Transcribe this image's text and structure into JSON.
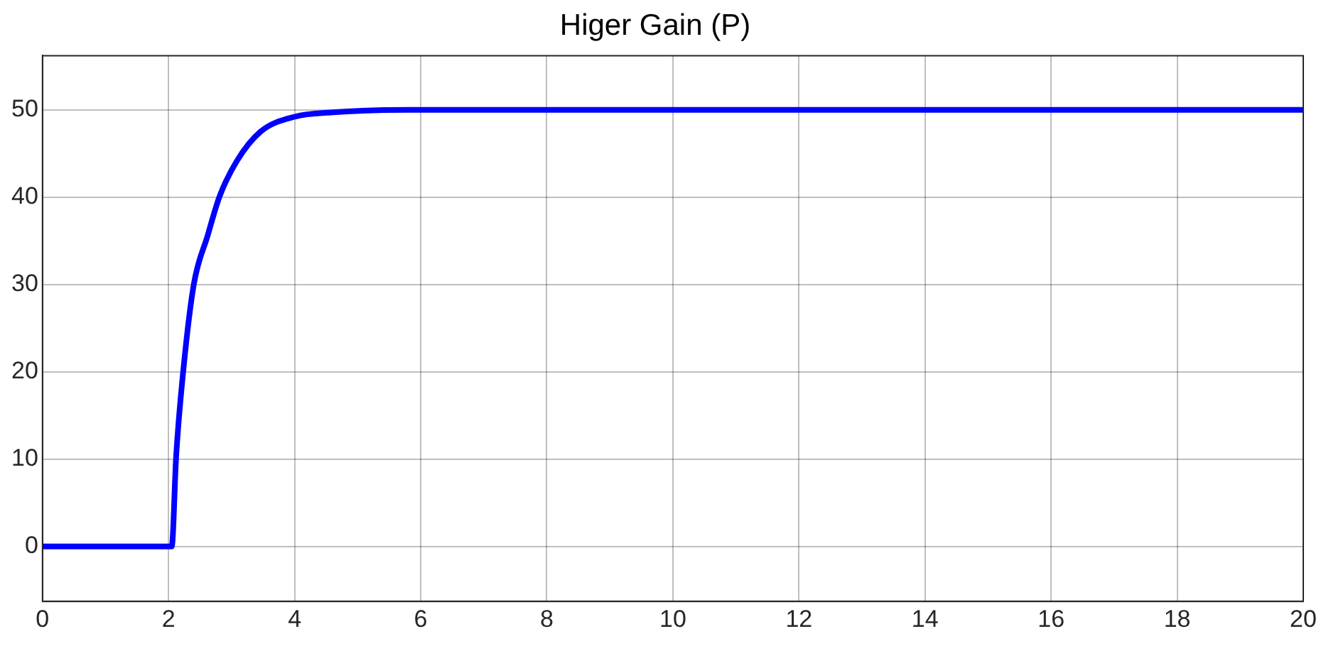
{
  "chart_data": {
    "type": "line",
    "title": "Higer Gain (P)",
    "x": [
      0,
      2.05,
      2.12,
      2.23,
      2.4,
      2.62,
      2.81,
      3.08,
      3.46,
      4,
      4.6,
      5.8,
      20
    ],
    "series": [
      {
        "color": "#0000ff",
        "values": [
          0,
          0,
          10.3,
          19.9,
          30,
          35.6,
          40.1,
          44.1,
          47.5,
          49.2,
          49.7,
          50,
          50
        ]
      }
    ],
    "xlim": [
      0,
      20
    ],
    "xticks": [
      0,
      2,
      4,
      6,
      8,
      10,
      12,
      14,
      16,
      18,
      20
    ],
    "ylim": [
      -6.3,
      56.2
    ],
    "yticks": [
      0,
      10,
      20,
      30,
      40,
      50
    ],
    "grid": true,
    "legend": false,
    "marker": "none",
    "line_style": "solid"
  }
}
